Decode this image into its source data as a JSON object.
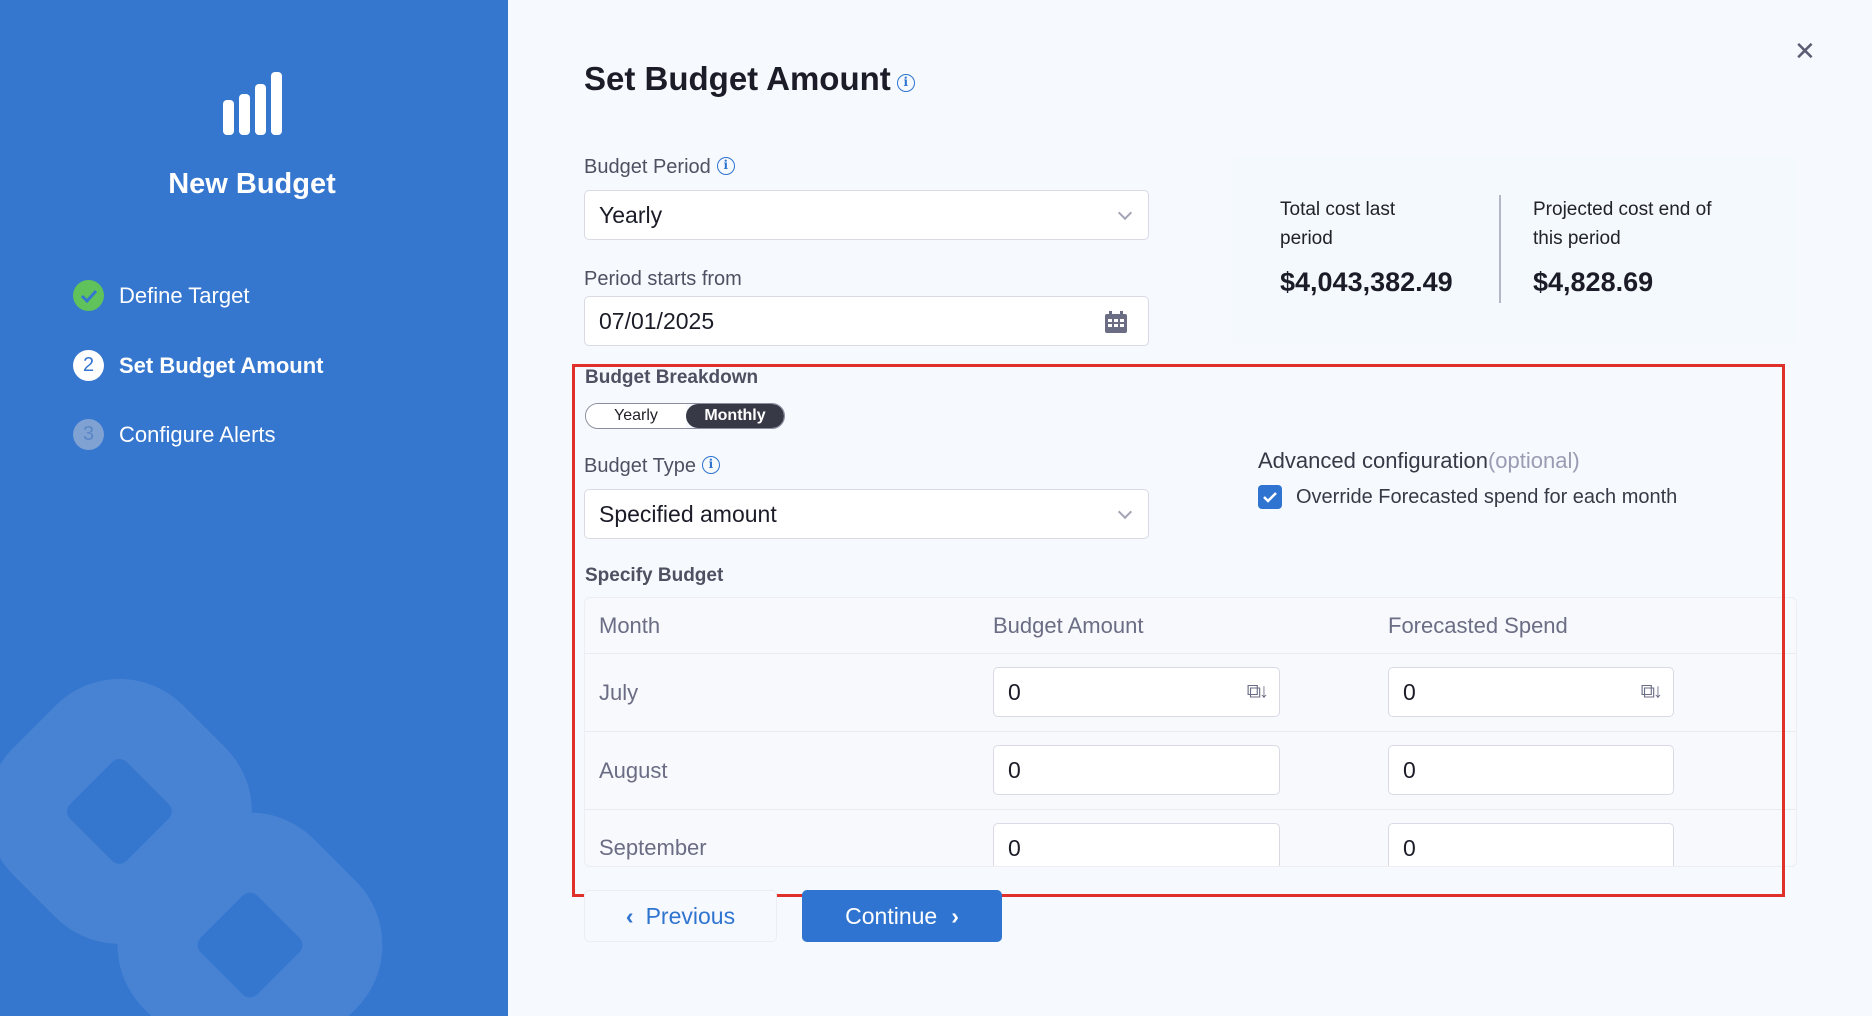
{
  "sidebar": {
    "title": "New Budget",
    "logo_icon": "bar-chart-icon",
    "steps": [
      {
        "label": "Define Target",
        "status": "completed",
        "number": "1"
      },
      {
        "label": "Set Budget Amount",
        "status": "active",
        "number": "2"
      },
      {
        "label": "Configure Alerts",
        "status": "pending",
        "number": "3"
      }
    ]
  },
  "main": {
    "title": "Set Budget Amount",
    "info_glyph": "i",
    "close_glyph": "✕",
    "budget_period": {
      "label": "Budget Period",
      "value": "Yearly"
    },
    "period_start": {
      "label": "Period starts from",
      "value": "07/01/2025"
    },
    "costs": {
      "last_label_1": "Total cost last",
      "last_label_2": "period",
      "last_value": "$4,043,382.49",
      "proj_label_1": "Projected cost end of",
      "proj_label_2": "this period",
      "proj_value": "$4,828.69"
    },
    "breakdown": {
      "label": "Budget Breakdown",
      "options": [
        "Yearly",
        "Monthly"
      ],
      "selected": "Monthly"
    },
    "budget_type": {
      "label": "Budget Type",
      "value": "Specified amount"
    },
    "advanced": {
      "label": "Advanced configuration",
      "optional": "(optional)",
      "checkbox_label": "Override Forecasted spend for each month",
      "checked": true
    },
    "specify": {
      "label": "Specify Budget",
      "columns": [
        "Month",
        "Budget Amount",
        "Forecasted Spend"
      ],
      "rows": [
        {
          "month": "July",
          "budget": "0",
          "forecast": "0"
        },
        {
          "month": "August",
          "budget": "0",
          "forecast": "0"
        },
        {
          "month": "September",
          "budget": "0",
          "forecast": "0"
        }
      ]
    },
    "previous_label": "Previous",
    "continue_label": "Continue"
  },
  "colors": {
    "sidebar": "#3576cf",
    "accent": "#2f74d0",
    "highlight": "#e0302a",
    "success": "#5fc25a"
  }
}
